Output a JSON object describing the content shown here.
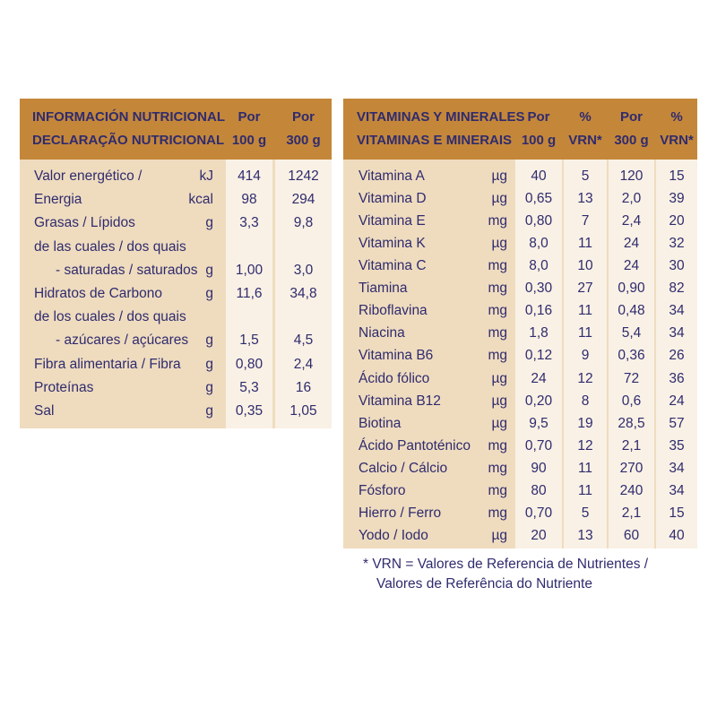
{
  "left": {
    "header": [
      "INFORMACIÓN NUTRICIONAL",
      "DECLARAÇÃO NUTRICIONAL"
    ],
    "columns": [
      [
        "Por",
        "100 g"
      ],
      [
        "Por",
        "300 g"
      ]
    ],
    "rows": [
      [
        "Valor energético /",
        "kJ",
        "414",
        "1242"
      ],
      [
        "Energia",
        "kcal",
        "98",
        "294"
      ],
      [
        "Grasas / Lípidos",
        "g",
        "3,3",
        "9,8"
      ],
      [
        "de las cuales / dos quais"
      ],
      [
        "- saturadas / saturados",
        "g",
        "1,00",
        "3,0"
      ],
      [
        "Hidratos de Carbono",
        "g",
        "11,6",
        "34,8"
      ],
      [
        "de los cuales / dos quais"
      ],
      [
        "- azúcares / açúcares",
        "g",
        "1,5",
        "4,5"
      ],
      [
        "Fibra alimentaria / Fibra",
        "g",
        "0,80",
        "2,4"
      ],
      [
        "Proteínas",
        "g",
        "5,3",
        "16"
      ],
      [
        "Sal",
        "g",
        "0,35",
        "1,05"
      ]
    ]
  },
  "right": {
    "header": [
      "VITAMINAS Y MINERALES",
      "VITAMINAS E MINERAIS"
    ],
    "columns": [
      [
        "Por",
        "100 g"
      ],
      [
        "%",
        "VRN*"
      ],
      [
        "Por",
        "300 g"
      ],
      [
        "%",
        "VRN*"
      ]
    ],
    "rows": [
      [
        "Vitamina A",
        "µg",
        "40",
        "5",
        "120",
        "15"
      ],
      [
        "Vitamina D",
        "µg",
        "0,65",
        "13",
        "2,0",
        "39"
      ],
      [
        "Vitamina E",
        "mg",
        "0,80",
        "7",
        "2,4",
        "20"
      ],
      [
        "Vitamina K",
        "µg",
        "8,0",
        "11",
        "24",
        "32"
      ],
      [
        "Vitamina C",
        "mg",
        "8,0",
        "10",
        "24",
        "30"
      ],
      [
        "Tiamina",
        "mg",
        "0,30",
        "27",
        "0,90",
        "82"
      ],
      [
        "Riboflavina",
        "mg",
        "0,16",
        "11",
        "0,48",
        "34"
      ],
      [
        "Niacina",
        "mg",
        "1,8",
        "11",
        "5,4",
        "34"
      ],
      [
        "Vitamina B6",
        "mg",
        "0,12",
        "9",
        "0,36",
        "26"
      ],
      [
        "Ácido fólico",
        "µg",
        "24",
        "12",
        "72",
        "36"
      ],
      [
        "Vitamina B12",
        "µg",
        "0,20",
        "8",
        "0,6",
        "24"
      ],
      [
        "Biotina",
        "µg",
        "9,5",
        "19",
        "28,5",
        "57"
      ],
      [
        "Ácido Pantoténico",
        "mg",
        "0,70",
        "12",
        "2,1",
        "35"
      ],
      [
        "Calcio / Cálcio",
        "mg",
        "90",
        "11",
        "270",
        "34"
      ],
      [
        "Fósforo",
        "mg",
        "80",
        "11",
        "240",
        "34"
      ],
      [
        "Hierro / Ferro",
        "mg",
        "0,70",
        "5",
        "2,1",
        "15"
      ],
      [
        "Yodo / Iodo",
        "µg",
        "20",
        "13",
        "60",
        "40"
      ]
    ]
  },
  "footnote": [
    "* VRN = Valores de Referencia de Nutrientes /",
    "Valores de Referência do Nutriente"
  ]
}
